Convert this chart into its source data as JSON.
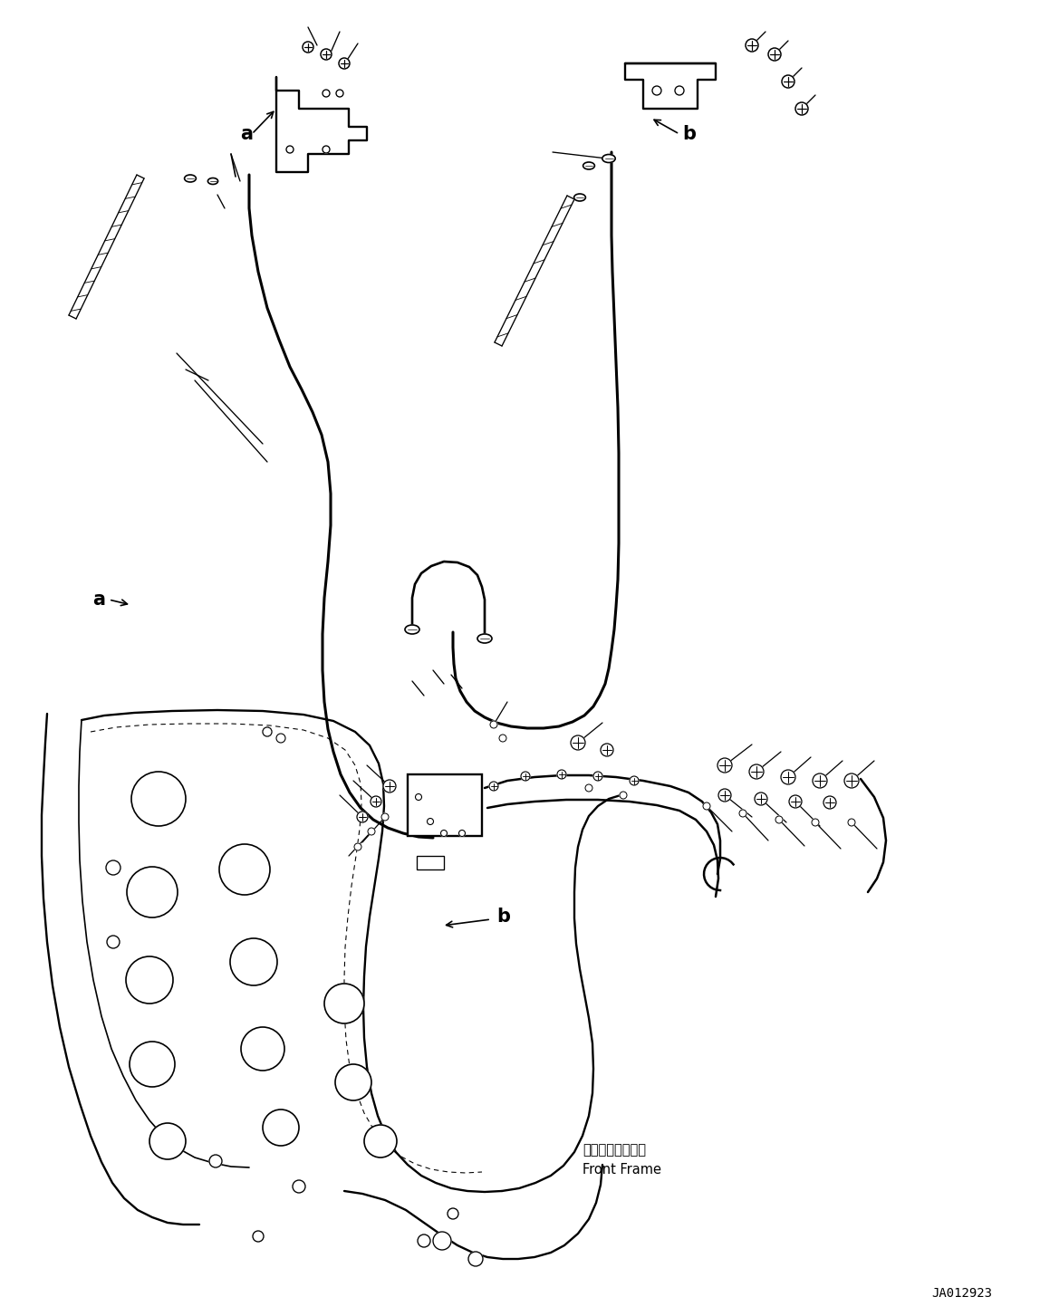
{
  "background_color": "#ffffff",
  "line_color": "#000000",
  "lw": 1.2,
  "tlw": 2.2,
  "fig_width": 11.48,
  "fig_height": 14.53,
  "dpi": 100,
  "part_code": "JA012923",
  "front_frame_line1": "フロントフレーム",
  "front_frame_line2": "Front Frame"
}
